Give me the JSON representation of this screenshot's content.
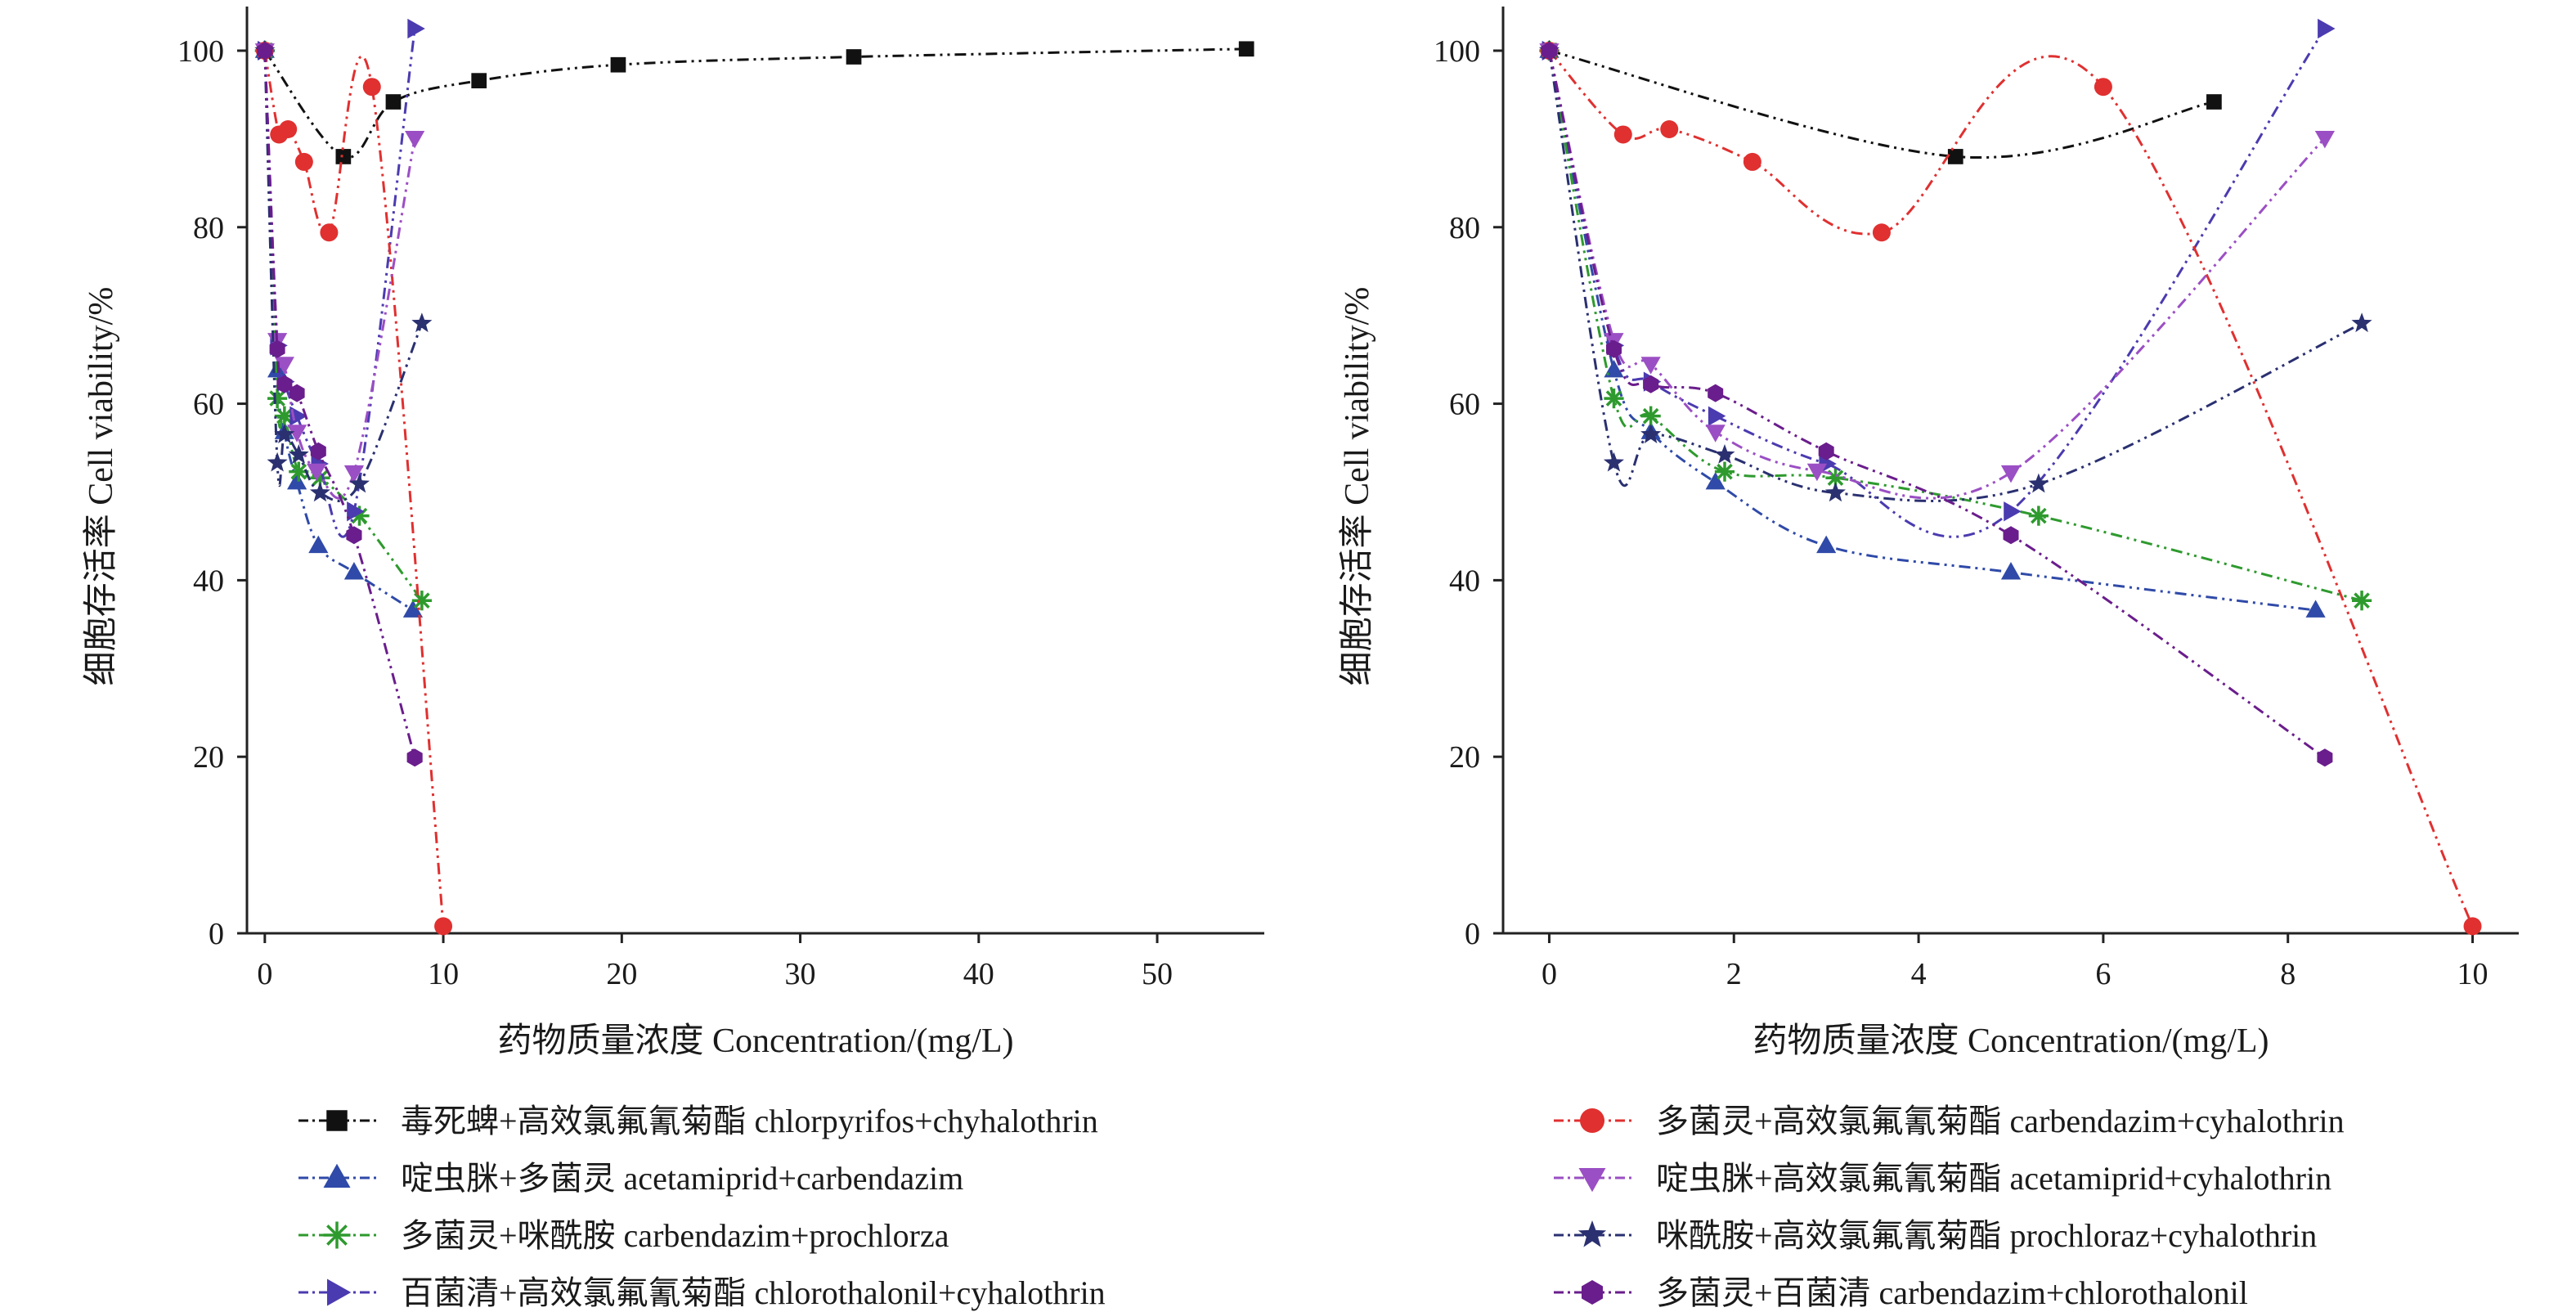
{
  "chart_data": [
    {
      "type": "line",
      "panel": "left",
      "xlabel": "药物质量浓度 Concentration/(mg/L)",
      "ylabel": "细胞存活率 Cell viability/%",
      "xlim": [
        -1,
        56
      ],
      "ylim": [
        0,
        105
      ],
      "xticks": [
        0,
        10,
        20,
        30,
        40,
        50
      ],
      "yticks": [
        0,
        20,
        40,
        60,
        80,
        100
      ],
      "series": [
        {
          "key": "chlorpyrifos",
          "name": "毒死蜱+高效氯氟氰菊酯 chlorpyrifos+chyhalothrin",
          "marker": "square",
          "color": "#111111",
          "x": [
            0,
            4.4,
            7.2,
            12,
            19.8,
            33,
            55
          ],
          "y": [
            100,
            88,
            94.2,
            96.6,
            98.4,
            99.3,
            100.2
          ]
        },
        {
          "key": "acetamiprid_carbendazim",
          "name": "啶虫脒+多菌灵 acetamiprid+carbendazim",
          "marker": "triangle-up",
          "color": "#2f4aa8",
          "x": [
            0,
            0.7,
            1.1,
            1.8,
            3,
            5,
            8.3
          ],
          "y": [
            100,
            63.8,
            56.8,
            51.1,
            43.9,
            40.9,
            36.6
          ]
        },
        {
          "key": "carbendazim_prochloraz",
          "name": "多菌灵+咪酰胺 carbendazim+prochlorza",
          "marker": "asterisk",
          "color": "#2e9a2e",
          "x": [
            0,
            0.7,
            1.1,
            1.9,
            3.1,
            5.3,
            8.8
          ],
          "y": [
            100,
            60.6,
            58.6,
            52.3,
            51.6,
            47.3,
            37.7
          ]
        },
        {
          "key": "chlorothalonil_cyhalothrin",
          "name": "百菌清+高效氯氟氰菊酯 chlorothalonil+cyhalothrin",
          "marker": "triangle-right",
          "color": "#4b3bb0",
          "x": [
            0,
            0.7,
            1.1,
            1.8,
            3,
            5,
            8.4
          ],
          "y": [
            100,
            66.6,
            62.5,
            58.6,
            53.2,
            47.8,
            102.5
          ]
        },
        {
          "key": "carbendazim_cyhalothrin",
          "name": "多菌灵+高效氯氟氰菊酯 carbendazim+cyhalothrin",
          "marker": "circle",
          "color": "#e03030",
          "x": [
            0,
            0.8,
            1.3,
            2.2,
            3.6,
            6,
            10
          ],
          "y": [
            100,
            90.5,
            91.1,
            87.4,
            79.4,
            95.9,
            0.8
          ]
        },
        {
          "key": "acetamiprid_cyhalothrin",
          "name": "啶虫脒+高效氯氟氰菊酯 acetamiprid+cyhalothrin",
          "marker": "triangle-down",
          "color": "#9b4fc4",
          "x": [
            0,
            0.7,
            1.1,
            1.8,
            2.9,
            5,
            8.4
          ],
          "y": [
            100,
            67.2,
            64.5,
            56.8,
            52.4,
            52.2,
            90.1
          ]
        },
        {
          "key": "prochloraz_cyhalothrin",
          "name": "咪酰胺+高效氯氟氰菊酯 prochloraz+cyhalothrin",
          "marker": "star",
          "color": "#2a3070",
          "x": [
            0,
            0.7,
            1.1,
            1.9,
            3.1,
            5.3,
            8.8
          ],
          "y": [
            100,
            53.3,
            56.5,
            54.2,
            49.9,
            50.9,
            69.1
          ]
        },
        {
          "key": "carbendazim_chlorothalonil",
          "name": "多菌灵+百菌清 carbendazim+chlorothalonil",
          "marker": "hexagon",
          "color": "#6a1d8c",
          "x": [
            0,
            0.7,
            1.1,
            1.8,
            3,
            5,
            8.4
          ],
          "y": [
            100,
            66.2,
            62.2,
            61.2,
            54.6,
            45.1,
            19.9
          ]
        }
      ]
    },
    {
      "type": "line",
      "panel": "right",
      "xlabel": "药物质量浓度 Concentration/(mg/L)",
      "ylabel": "细胞存活率 Cell viability/%",
      "xlim": [
        -0.5,
        10.5
      ],
      "ylim": [
        0,
        105
      ],
      "xticks": [
        0,
        2,
        4,
        6,
        8,
        10
      ],
      "yticks": [
        0,
        20,
        40,
        60,
        80,
        100
      ],
      "series": [
        {
          "key": "chlorpyrifos",
          "name": "毒死蜱+高效氯氟氰菊酯 chlorpyrifos+chyhalothrin",
          "marker": "square",
          "color": "#111111",
          "x": [
            0,
            4.4,
            7.2
          ],
          "y": [
            100,
            88,
            94.2
          ]
        },
        {
          "key": "acetamiprid_carbendazim",
          "name": "啶虫脒+多菌灵 acetamiprid+carbendazim",
          "marker": "triangle-up",
          "color": "#2f4aa8",
          "x": [
            0,
            0.7,
            1.1,
            1.8,
            3,
            5,
            8.3
          ],
          "y": [
            100,
            63.8,
            56.8,
            51.1,
            43.9,
            40.9,
            36.6
          ]
        },
        {
          "key": "carbendazim_prochloraz",
          "name": "多菌灵+咪酰胺 carbendazim+prochlorza",
          "marker": "asterisk",
          "color": "#2e9a2e",
          "x": [
            0,
            0.7,
            1.1,
            1.9,
            3.1,
            5.3,
            8.8
          ],
          "y": [
            100,
            60.6,
            58.6,
            52.3,
            51.6,
            47.3,
            37.7
          ]
        },
        {
          "key": "chlorothalonil_cyhalothrin",
          "name": "百菌清+高效氯氟氰菊酯 chlorothalonil+cyhalothrin",
          "marker": "triangle-right",
          "color": "#4b3bb0",
          "x": [
            0,
            0.7,
            1.1,
            1.8,
            3,
            5,
            8.4
          ],
          "y": [
            100,
            66.6,
            62.5,
            58.6,
            53.2,
            47.8,
            102.5
          ]
        },
        {
          "key": "carbendazim_cyhalothrin",
          "name": "多菌灵+高效氯氟氰菊酯 carbendazim+cyhalothrin",
          "marker": "circle",
          "color": "#e03030",
          "x": [
            0,
            0.8,
            1.3,
            2.2,
            3.6,
            6,
            10
          ],
          "y": [
            100,
            90.5,
            91.1,
            87.4,
            79.4,
            95.9,
            0.8
          ]
        },
        {
          "key": "acetamiprid_cyhalothrin",
          "name": "啶虫脒+高效氯氟氰菊酯 acetamiprid+cyhalothrin",
          "marker": "triangle-down",
          "color": "#9b4fc4",
          "x": [
            0,
            0.7,
            1.1,
            1.8,
            2.9,
            5,
            8.4
          ],
          "y": [
            100,
            67.2,
            64.5,
            56.8,
            52.4,
            52.2,
            90.1
          ]
        },
        {
          "key": "prochloraz_cyhalothrin",
          "name": "咪酰胺+高效氯氟氰菊酯 prochloraz+cyhalothrin",
          "marker": "star",
          "color": "#2a3070",
          "x": [
            0,
            0.7,
            1.1,
            1.9,
            3.1,
            5.3,
            8.8
          ],
          "y": [
            100,
            53.3,
            56.5,
            54.2,
            49.9,
            50.9,
            69.1
          ]
        },
        {
          "key": "carbendazim_chlorothalonil",
          "name": "多菌灵+百菌清 carbendazim+chlorothalonil",
          "marker": "hexagon",
          "color": "#6a1d8c",
          "x": [
            0,
            0.7,
            1.1,
            1.8,
            3,
            5,
            8.4
          ],
          "y": [
            100,
            66.2,
            62.2,
            61.2,
            54.6,
            45.1,
            19.9
          ]
        }
      ]
    }
  ],
  "legend_left": [
    {
      "label": "毒死蜱+高效氯氟氰菊酯 chlorpyrifos+chyhalothrin",
      "marker": "square",
      "color": "#111111"
    },
    {
      "label": "啶虫脒+多菌灵 acetamiprid+carbendazim",
      "marker": "triangle-up",
      "color": "#2f4aa8"
    },
    {
      "label": "多菌灵+咪酰胺 carbendazim+prochlorza",
      "marker": "asterisk",
      "color": "#2e9a2e"
    },
    {
      "label": "百菌清+高效氯氟氰菊酯 chlorothalonil+cyhalothrin",
      "marker": "triangle-right",
      "color": "#4b3bb0"
    }
  ],
  "legend_right": [
    {
      "label": "多菌灵+高效氯氟氰菊酯 carbendazim+cyhalothrin",
      "marker": "circle",
      "color": "#e03030"
    },
    {
      "label": "啶虫脒+高效氯氟氰菊酯 acetamiprid+cyhalothrin",
      "marker": "triangle-down",
      "color": "#9b4fc4"
    },
    {
      "label": "咪酰胺+高效氯氟氰菊酯 prochloraz+cyhalothrin",
      "marker": "star",
      "color": "#2a3070"
    },
    {
      "label": "多菌灵+百菌清 carbendazim+chlorothalonil",
      "marker": "hexagon",
      "color": "#6a1d8c"
    }
  ]
}
